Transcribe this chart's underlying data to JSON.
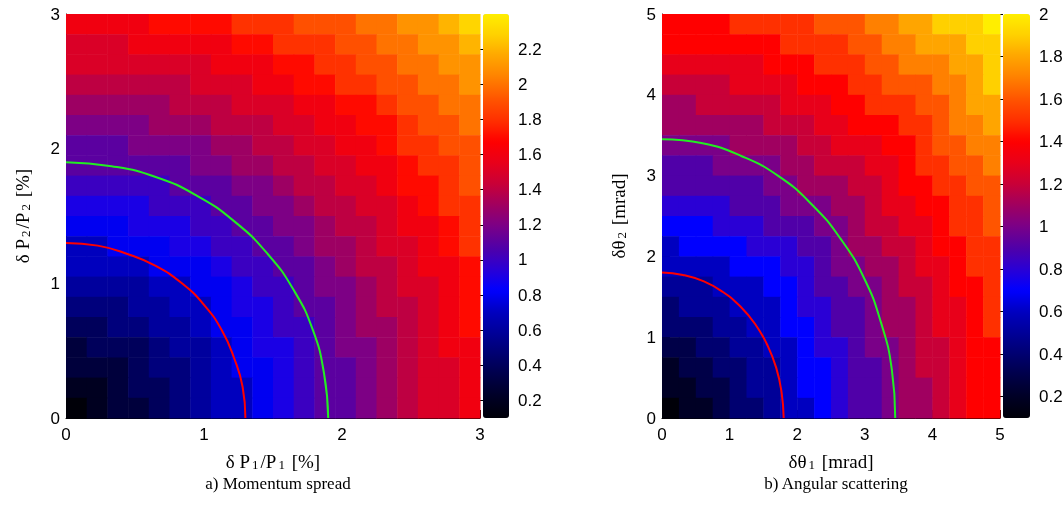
{
  "chart_data": [
    {
      "type": "heatmap",
      "title": "a) Momentum spread",
      "xlabel": "δ P$_{1}$/P$_{1}$ [%]",
      "ylabel": "δ P$_{2}$/P$_{2}$ [%]",
      "xlim": [
        0,
        3
      ],
      "ylim": [
        0,
        3
      ],
      "xticks": [
        0,
        1,
        2,
        3
      ],
      "yticks": [
        0,
        1,
        2,
        3
      ],
      "clim": [
        0.1,
        2.4
      ],
      "cticks": [
        0.2,
        0.4,
        0.6,
        0.8,
        1,
        1.2,
        1.4,
        1.6,
        1.8,
        2,
        2.2
      ],
      "cells": [
        [
          1.6,
          1.6,
          1.6,
          1.6,
          1.7,
          1.7,
          1.7,
          1.7,
          1.8,
          1.8,
          1.8,
          1.9,
          1.9,
          1.9,
          2,
          2,
          2.1,
          2.1,
          2.2,
          2.3
        ],
        [
          1.5,
          1.5,
          1.5,
          1.6,
          1.6,
          1.6,
          1.6,
          1.6,
          1.7,
          1.7,
          1.8,
          1.8,
          1.8,
          1.9,
          1.9,
          2,
          2,
          2.1,
          2.1,
          2.2
        ],
        [
          1.5,
          1.5,
          1.5,
          1.5,
          1.5,
          1.5,
          1.5,
          1.6,
          1.6,
          1.6,
          1.7,
          1.7,
          1.8,
          1.8,
          1.9,
          1.9,
          2,
          2,
          2.1,
          2.1
        ],
        [
          1.4,
          1.4,
          1.4,
          1.4,
          1.4,
          1.4,
          1.5,
          1.5,
          1.5,
          1.6,
          1.6,
          1.7,
          1.7,
          1.8,
          1.8,
          1.9,
          1.9,
          2,
          2,
          2.1
        ],
        [
          1.3,
          1.3,
          1.3,
          1.3,
          1.3,
          1.4,
          1.4,
          1.4,
          1.5,
          1.5,
          1.5,
          1.6,
          1.6,
          1.7,
          1.7,
          1.8,
          1.9,
          1.9,
          2,
          2
        ],
        [
          1.2,
          1.2,
          1.2,
          1.2,
          1.3,
          1.3,
          1.3,
          1.4,
          1.4,
          1.4,
          1.5,
          1.5,
          1.6,
          1.6,
          1.7,
          1.7,
          1.8,
          1.9,
          1.9,
          2
        ],
        [
          1.1,
          1.1,
          1.1,
          1.2,
          1.2,
          1.2,
          1.2,
          1.3,
          1.3,
          1.4,
          1.4,
          1.5,
          1.5,
          1.6,
          1.6,
          1.7,
          1.8,
          1.8,
          1.9,
          1.9
        ],
        [
          1.1,
          1.1,
          1.1,
          1.1,
          1.1,
          1.1,
          1.2,
          1.2,
          1.3,
          1.3,
          1.4,
          1.4,
          1.5,
          1.5,
          1.6,
          1.6,
          1.7,
          1.8,
          1.8,
          1.9
        ],
        [
          1,
          1,
          1,
          1,
          1,
          1.1,
          1.1,
          1.1,
          1.2,
          1.2,
          1.3,
          1.4,
          1.4,
          1.5,
          1.5,
          1.6,
          1.7,
          1.7,
          1.8,
          1.9
        ],
        [
          0.9,
          0.9,
          0.9,
          0.9,
          1,
          1,
          1,
          1.1,
          1.1,
          1.2,
          1.2,
          1.3,
          1.4,
          1.4,
          1.5,
          1.5,
          1.6,
          1.7,
          1.8,
          1.8
        ],
        [
          0.8,
          0.8,
          0.8,
          0.9,
          0.9,
          0.9,
          1,
          1,
          1.1,
          1.1,
          1.2,
          1.2,
          1.3,
          1.4,
          1.4,
          1.5,
          1.6,
          1.6,
          1.7,
          1.8
        ],
        [
          0.7,
          0.7,
          0.8,
          0.8,
          0.8,
          0.9,
          0.9,
          1,
          1,
          1.1,
          1.1,
          1.2,
          1.3,
          1.3,
          1.4,
          1.5,
          1.5,
          1.6,
          1.7,
          1.8
        ],
        [
          0.7,
          0.7,
          0.7,
          0.7,
          0.8,
          0.8,
          0.8,
          0.9,
          1,
          1,
          1.1,
          1.1,
          1.2,
          1.3,
          1.4,
          1.4,
          1.5,
          1.6,
          1.6,
          1.7
        ],
        [
          0.6,
          0.6,
          0.6,
          0.6,
          0.7,
          0.7,
          0.8,
          0.8,
          0.9,
          1,
          1,
          1.1,
          1.2,
          1.2,
          1.3,
          1.4,
          1.5,
          1.5,
          1.6,
          1.7
        ],
        [
          0.5,
          0.5,
          0.5,
          0.6,
          0.6,
          0.7,
          0.7,
          0.8,
          0.9,
          0.9,
          1,
          1.1,
          1.1,
          1.2,
          1.3,
          1.4,
          1.4,
          1.5,
          1.6,
          1.7
        ],
        [
          0.4,
          0.4,
          0.5,
          0.5,
          0.6,
          0.6,
          0.7,
          0.8,
          0.8,
          0.9,
          1,
          1,
          1.1,
          1.2,
          1.3,
          1.3,
          1.4,
          1.5,
          1.6,
          1.7
        ],
        [
          0.3,
          0.4,
          0.4,
          0.4,
          0.5,
          0.6,
          0.6,
          0.7,
          0.8,
          0.9,
          0.9,
          1,
          1.1,
          1.2,
          1.2,
          1.3,
          1.4,
          1.5,
          1.6,
          1.6
        ],
        [
          0.3,
          0.3,
          0.3,
          0.4,
          0.5,
          0.5,
          0.6,
          0.7,
          0.8,
          0.8,
          0.9,
          1,
          1.1,
          1.1,
          1.2,
          1.3,
          1.4,
          1.5,
          1.5,
          1.6
        ],
        [
          0.2,
          0.2,
          0.3,
          0.4,
          0.4,
          0.5,
          0.6,
          0.7,
          0.7,
          0.8,
          0.9,
          1,
          1.1,
          1.1,
          1.2,
          1.3,
          1.4,
          1.5,
          1.5,
          1.6
        ],
        [
          0.1,
          0.2,
          0.3,
          0.3,
          0.4,
          0.5,
          0.6,
          0.7,
          0.7,
          0.8,
          0.9,
          1,
          1.1,
          1.1,
          1.2,
          1.3,
          1.4,
          1.5,
          1.5,
          1.6
        ]
      ],
      "series": [
        {
          "type": "line",
          "color": "#ff0000",
          "x": [
            1.3,
            1.28,
            1.22,
            1.13,
            1.0,
            0.84,
            0.65,
            0.44,
            0.23,
            0
          ],
          "values": [
            0,
            0.23,
            0.44,
            0.65,
            0.84,
            1.0,
            1.13,
            1.22,
            1.28,
            1.3
          ]
        },
        {
          "type": "line",
          "color": "#22ee22",
          "x": [
            1.9,
            1.87,
            1.79,
            1.65,
            1.46,
            1.22,
            0.95,
            0.65,
            0.33,
            0
          ],
          "values": [
            0,
            0.33,
            0.65,
            0.95,
            1.22,
            1.46,
            1.65,
            1.79,
            1.87,
            1.9
          ]
        }
      ]
    },
    {
      "type": "heatmap",
      "title": "b) Angular scattering",
      "xlabel": "δθ$_{1}$ [mrad]",
      "ylabel": "δθ$_{2}$ [mrad]",
      "xlim": [
        0,
        5
      ],
      "ylim": [
        0,
        5
      ],
      "xticks": [
        0,
        1,
        2,
        3,
        4,
        5
      ],
      "yticks": [
        0,
        1,
        2,
        3,
        4,
        5
      ],
      "clim": [
        0.1,
        2.0
      ],
      "cticks": [
        0.2,
        0.4,
        0.6,
        0.8,
        1,
        1.2,
        1.4,
        1.6,
        1.8,
        2
      ],
      "cells": [
        [
          1.4,
          1.4,
          1.4,
          1.4,
          1.5,
          1.5,
          1.5,
          1.5,
          1.5,
          1.6,
          1.6,
          1.6,
          1.7,
          1.7,
          1.8,
          1.8,
          1.9,
          1.9,
          1.9,
          2
        ],
        [
          1.4,
          1.4,
          1.4,
          1.4,
          1.4,
          1.4,
          1.4,
          1.5,
          1.5,
          1.5,
          1.5,
          1.6,
          1.6,
          1.7,
          1.7,
          1.8,
          1.8,
          1.8,
          1.9,
          1.9
        ],
        [
          1.3,
          1.3,
          1.3,
          1.3,
          1.3,
          1.3,
          1.4,
          1.4,
          1.4,
          1.5,
          1.5,
          1.5,
          1.6,
          1.6,
          1.7,
          1.7,
          1.7,
          1.8,
          1.8,
          1.9
        ],
        [
          1.2,
          1.2,
          1.2,
          1.2,
          1.3,
          1.3,
          1.3,
          1.3,
          1.4,
          1.4,
          1.4,
          1.5,
          1.5,
          1.6,
          1.6,
          1.6,
          1.7,
          1.7,
          1.8,
          1.9
        ],
        [
          1.1,
          1.1,
          1.2,
          1.2,
          1.2,
          1.2,
          1.2,
          1.3,
          1.3,
          1.3,
          1.4,
          1.4,
          1.5,
          1.5,
          1.5,
          1.6,
          1.6,
          1.7,
          1.8,
          1.8
        ],
        [
          1.1,
          1.1,
          1.1,
          1.1,
          1.1,
          1.1,
          1.2,
          1.2,
          1.2,
          1.3,
          1.3,
          1.4,
          1.4,
          1.4,
          1.5,
          1.5,
          1.6,
          1.7,
          1.7,
          1.8
        ],
        [
          1,
          1,
          1,
          1,
          1.1,
          1.1,
          1.1,
          1.1,
          1.2,
          1.2,
          1.3,
          1.3,
          1.3,
          1.4,
          1.4,
          1.5,
          1.6,
          1.6,
          1.7,
          1.7
        ],
        [
          0.9,
          0.9,
          0.9,
          1,
          1,
          1,
          1,
          1.1,
          1.1,
          1.2,
          1.2,
          1.2,
          1.3,
          1.3,
          1.4,
          1.5,
          1.5,
          1.6,
          1.6,
          1.7
        ],
        [
          0.9,
          0.9,
          0.9,
          0.9,
          0.9,
          0.9,
          1,
          1,
          1.1,
          1.1,
          1.1,
          1.2,
          1.2,
          1.3,
          1.4,
          1.4,
          1.5,
          1.5,
          1.6,
          1.6
        ],
        [
          0.8,
          0.8,
          0.8,
          0.8,
          0.9,
          0.9,
          0.9,
          1,
          1,
          1,
          1.1,
          1.1,
          1.2,
          1.3,
          1.3,
          1.4,
          1.4,
          1.5,
          1.5,
          1.6
        ],
        [
          0.7,
          0.7,
          0.7,
          0.8,
          0.8,
          0.8,
          0.9,
          0.9,
          0.9,
          1,
          1,
          1.1,
          1.2,
          1.2,
          1.3,
          1.3,
          1.4,
          1.5,
          1.5,
          1.6
        ],
        [
          0.6,
          0.7,
          0.7,
          0.7,
          0.7,
          0.8,
          0.8,
          0.8,
          0.9,
          0.9,
          1,
          1.1,
          1.1,
          1.2,
          1.2,
          1.3,
          1.4,
          1.4,
          1.5,
          1.5
        ],
        [
          0.6,
          0.6,
          0.6,
          0.6,
          0.7,
          0.7,
          0.7,
          0.8,
          0.8,
          0.9,
          1,
          1,
          1.1,
          1.1,
          1.2,
          1.3,
          1.3,
          1.4,
          1.5,
          1.5
        ],
        [
          0.5,
          0.5,
          0.5,
          0.6,
          0.6,
          0.6,
          0.7,
          0.7,
          0.8,
          0.9,
          0.9,
          1,
          1,
          1.1,
          1.2,
          1.2,
          1.3,
          1.4,
          1.4,
          1.5
        ],
        [
          0.4,
          0.5,
          0.5,
          0.5,
          0.6,
          0.6,
          0.6,
          0.7,
          0.8,
          0.8,
          0.9,
          0.9,
          1,
          1.1,
          1.1,
          1.2,
          1.3,
          1.3,
          1.4,
          1.5
        ],
        [
          0.4,
          0.4,
          0.4,
          0.5,
          0.5,
          0.6,
          0.6,
          0.7,
          0.7,
          0.8,
          0.9,
          0.9,
          1,
          1.1,
          1.1,
          1.2,
          1.3,
          1.3,
          1.4,
          1.5
        ],
        [
          0.3,
          0.3,
          0.4,
          0.4,
          0.5,
          0.5,
          0.6,
          0.6,
          0.7,
          0.8,
          0.8,
          0.9,
          1,
          1,
          1.1,
          1.2,
          1.2,
          1.3,
          1.4,
          1.4
        ],
        [
          0.2,
          0.3,
          0.3,
          0.4,
          0.4,
          0.5,
          0.5,
          0.6,
          0.7,
          0.7,
          0.8,
          0.9,
          0.9,
          1,
          1.1,
          1.2,
          1.2,
          1.3,
          1.4,
          1.4
        ],
        [
          0.2,
          0.2,
          0.3,
          0.3,
          0.4,
          0.5,
          0.5,
          0.6,
          0.7,
          0.7,
          0.8,
          0.9,
          0.9,
          1,
          1.1,
          1.1,
          1.2,
          1.3,
          1.4,
          1.4
        ],
        [
          0.1,
          0.2,
          0.2,
          0.3,
          0.4,
          0.4,
          0.5,
          0.6,
          0.6,
          0.7,
          0.8,
          0.9,
          0.9,
          1,
          1.1,
          1.1,
          1.2,
          1.3,
          1.4,
          1.4
        ]
      ],
      "series": [
        {
          "type": "line",
          "color": "#ff0000",
          "x": [
            1.8,
            1.77,
            1.69,
            1.56,
            1.38,
            1.16,
            0.9,
            0.62,
            0.31,
            0
          ],
          "values": [
            0,
            0.31,
            0.62,
            0.9,
            1.16,
            1.38,
            1.56,
            1.69,
            1.77,
            1.8
          ]
        },
        {
          "type": "line",
          "color": "#22ee22",
          "x": [
            3.45,
            3.4,
            3.24,
            2.99,
            2.64,
            2.22,
            1.73,
            1.18,
            0.6,
            0
          ],
          "values": [
            0,
            0.6,
            1.18,
            1.73,
            2.22,
            2.64,
            2.99,
            3.24,
            3.4,
            3.45
          ]
        }
      ]
    }
  ]
}
